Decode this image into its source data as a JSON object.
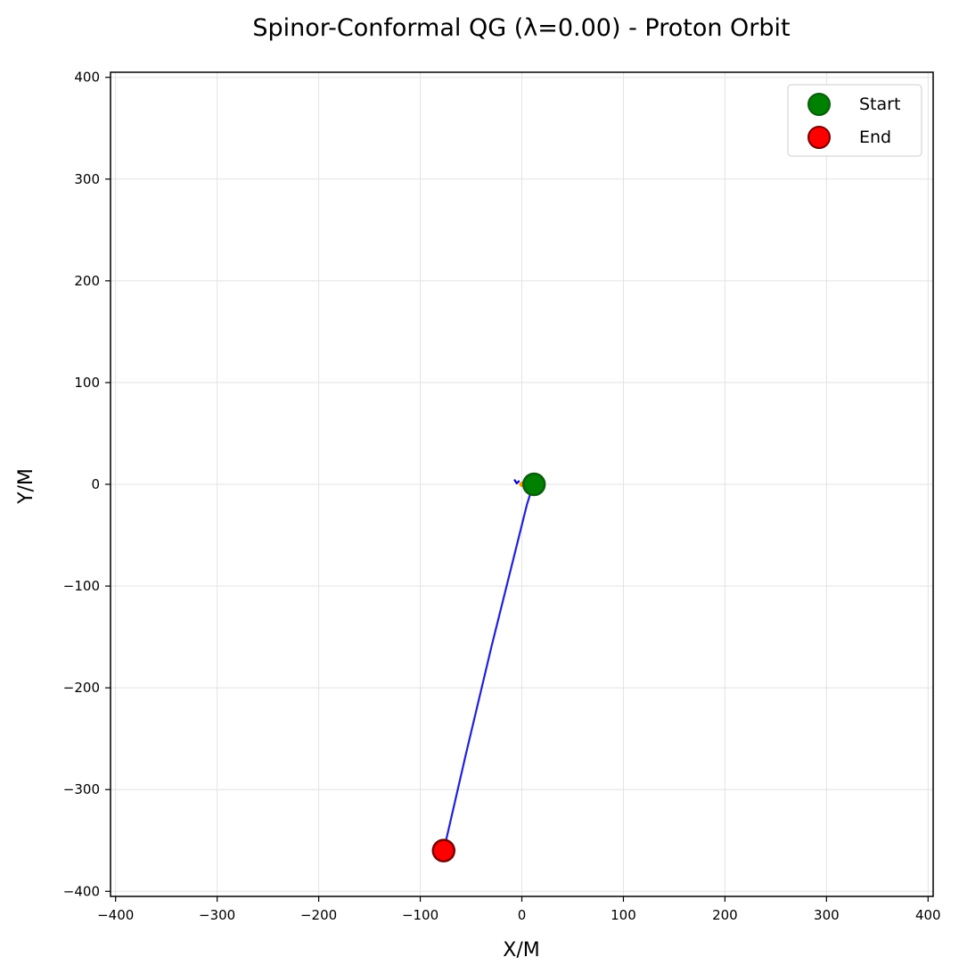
{
  "chart_data": {
    "type": "line",
    "title": "Spinor-Conformal QG (λ=0.00) - Proton Orbit",
    "xlabel": "X/M",
    "ylabel": "Y/M",
    "xlim": [
      -405,
      405
    ],
    "ylim": [
      -405,
      405
    ],
    "xticks": [
      -400,
      -300,
      -200,
      -100,
      0,
      100,
      200,
      300,
      400
    ],
    "yticks": [
      -400,
      -300,
      -200,
      -100,
      0,
      100,
      200,
      300,
      400
    ],
    "xtick_labels": [
      "−400",
      "−300",
      "−200",
      "−100",
      "0",
      "100",
      "200",
      "300",
      "400"
    ],
    "ytick_labels": [
      "−400",
      "−300",
      "−200",
      "−100",
      "0",
      "100",
      "200",
      "300",
      "400"
    ],
    "grid": true,
    "legend_position": "top-right",
    "series": [
      {
        "name": "",
        "color": "#1f1fe0",
        "points": [
          [
            12,
            0
          ],
          [
            9,
            -7
          ],
          [
            5,
            -20
          ],
          [
            0,
            -40
          ],
          [
            -10,
            -80
          ],
          [
            -30,
            -160
          ],
          [
            -55,
            -265
          ],
          [
            -77,
            -360
          ]
        ]
      },
      {
        "name": "",
        "color": "#0000cc",
        "points": [
          [
            -7,
            4
          ],
          [
            -5,
            1
          ],
          [
            -3,
            3
          ]
        ]
      }
    ],
    "markers": [
      {
        "label": "Start",
        "x": 12,
        "y": 0,
        "fill": "#008000",
        "stroke": "#0b5d0b"
      },
      {
        "label": "End",
        "x": -77,
        "y": -360,
        "fill": "#ff0000",
        "stroke": "#7a0000"
      }
    ],
    "annotations": [
      {
        "x": 0,
        "y": 0,
        "color": "#ff9900"
      }
    ]
  }
}
